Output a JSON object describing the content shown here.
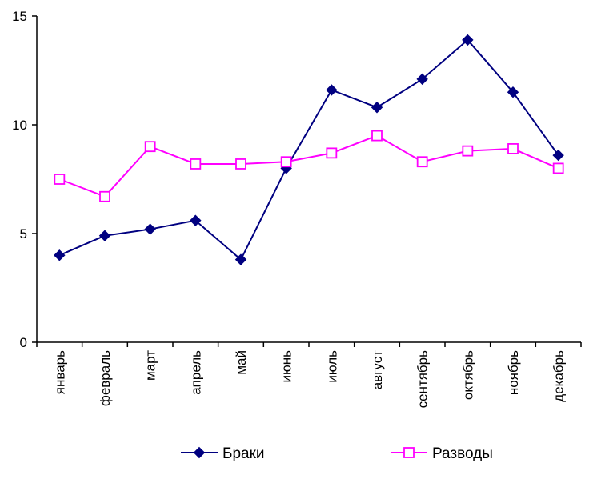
{
  "chart_data": {
    "type": "line",
    "title": "",
    "xlabel": "",
    "ylabel": "",
    "categories": [
      "январь",
      "февраль",
      "март",
      "апрель",
      "май",
      "июнь",
      "июль",
      "август",
      "сентябрь",
      "октябрь",
      "ноябрь",
      "декабрь"
    ],
    "ylim": [
      0,
      15
    ],
    "yticks": [
      0,
      5,
      10,
      15
    ],
    "grid": false,
    "legend_position": "bottom",
    "series": [
      {
        "name": "Браки",
        "color": "#000080",
        "marker": "filled-diamond",
        "values": [
          4.0,
          4.9,
          5.2,
          5.6,
          3.8,
          8.0,
          11.6,
          10.8,
          12.1,
          13.9,
          11.5,
          8.6
        ]
      },
      {
        "name": "Разводы",
        "color": "#FF00FF",
        "marker": "open-square",
        "values": [
          7.5,
          6.7,
          9.0,
          8.2,
          8.2,
          8.3,
          8.7,
          9.5,
          8.3,
          8.8,
          8.9,
          8.0
        ]
      }
    ]
  }
}
